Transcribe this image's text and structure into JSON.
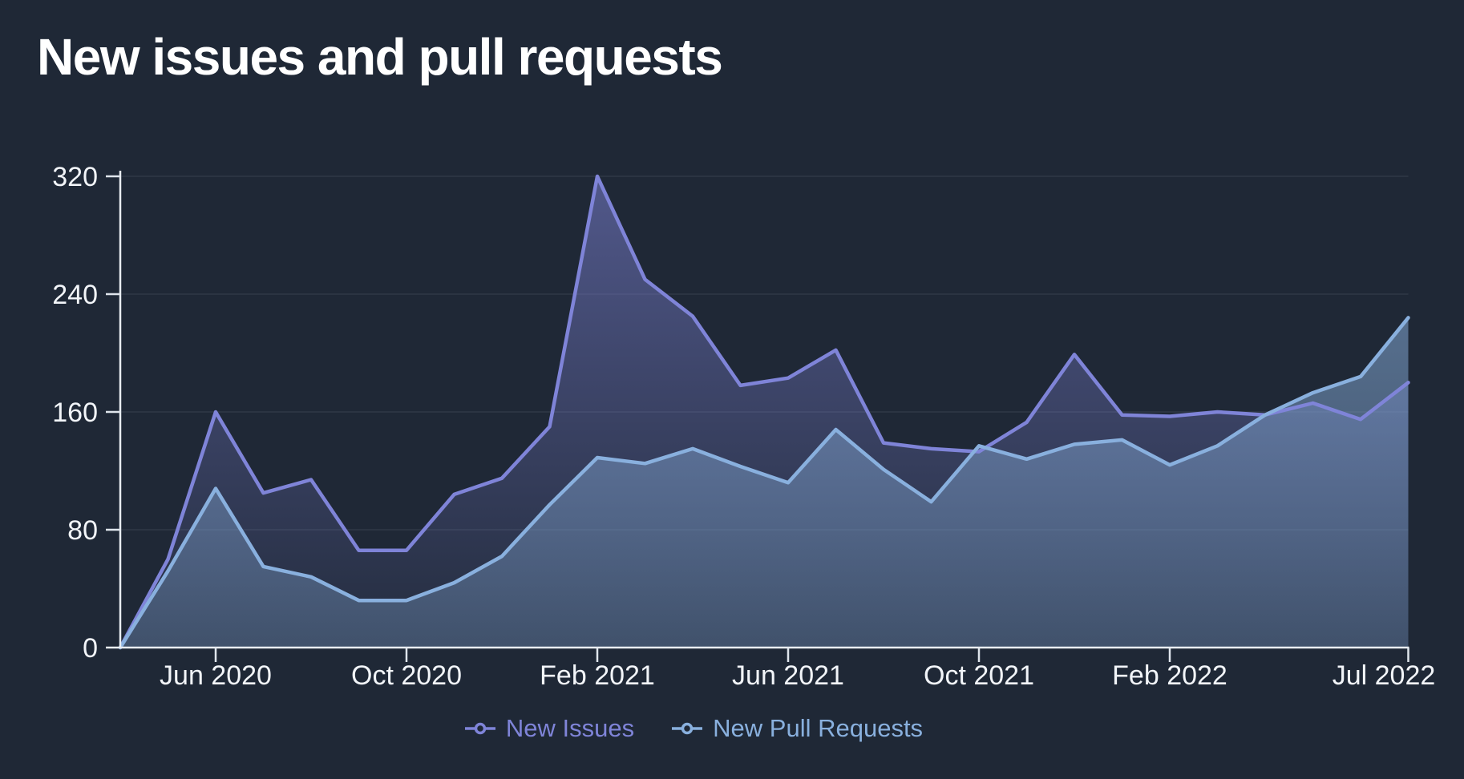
{
  "title": "New issues and pull requests",
  "colors": {
    "background": "#1f2836",
    "axis": "#e9edf2",
    "tick": "#dfe5ec",
    "grid": "#2b3442",
    "tick_text": "#f2f5f9",
    "issues": "#7f84d8",
    "pull_requests": "#89b0de"
  },
  "legend": {
    "items": [
      {
        "label": "New Issues",
        "color": "#7f84d8"
      },
      {
        "label": "New Pull Requests",
        "color": "#89b0de"
      }
    ]
  },
  "chart_data": {
    "type": "area",
    "title": "New issues and pull requests",
    "x": [
      "Apr 2020",
      "May 2020",
      "Jun 2020",
      "Jul 2020",
      "Aug 2020",
      "Sep 2020",
      "Oct 2020",
      "Nov 2020",
      "Dec 2020",
      "Jan 2021",
      "Feb 2021",
      "Mar 2021",
      "Apr 2021",
      "May 2021",
      "Jun 2021",
      "Jul 2021",
      "Aug 2021",
      "Sep 2021",
      "Oct 2021",
      "Nov 2021",
      "Dec 2021",
      "Jan 2022",
      "Feb 2022",
      "Mar 2022",
      "Apr 2022",
      "May 2022",
      "Jun 2022",
      "Jul 2022"
    ],
    "series": [
      {
        "name": "New Issues",
        "color": "#7f84d8",
        "values": [
          0,
          60,
          160,
          105,
          114,
          66,
          66,
          104,
          115,
          150,
          320,
          250,
          225,
          178,
          183,
          202,
          139,
          135,
          133,
          153,
          199,
          158,
          157,
          160,
          158,
          166,
          155,
          180
        ]
      },
      {
        "name": "New Pull Requests",
        "color": "#89b0de",
        "values": [
          0,
          52,
          108,
          55,
          48,
          32,
          32,
          44,
          62,
          97,
          129,
          125,
          135,
          123,
          112,
          148,
          121,
          99,
          137,
          128,
          138,
          141,
          124,
          137,
          158,
          173,
          184,
          224
        ]
      }
    ],
    "ylim": [
      0,
      320
    ],
    "y_ticks": [
      0,
      80,
      160,
      240,
      320
    ],
    "x_ticks": [
      {
        "index": 2,
        "label": "Jun 2020"
      },
      {
        "index": 6,
        "label": "Oct 2020"
      },
      {
        "index": 10,
        "label": "Feb 2021"
      },
      {
        "index": 14,
        "label": "Jun 2021"
      },
      {
        "index": 18,
        "label": "Oct 2021"
      },
      {
        "index": 22,
        "label": "Feb 2022"
      },
      {
        "index": 27,
        "label": "Jul 2022"
      }
    ],
    "grid": true,
    "legend_position": "bottom"
  }
}
